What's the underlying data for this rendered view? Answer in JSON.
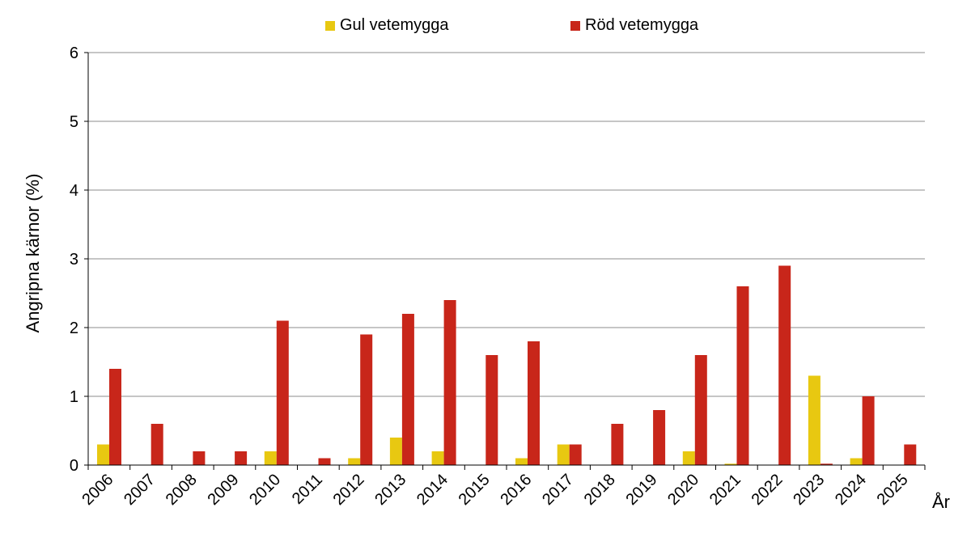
{
  "chart_data": {
    "type": "bar",
    "title": "",
    "xlabel": "År",
    "ylabel": "Angripna kärnor (%)",
    "ylim": [
      0,
      6
    ],
    "yticks": [
      "0",
      "1",
      "2",
      "3",
      "4",
      "5",
      "6"
    ],
    "grid": true,
    "legend_position": "top",
    "categories": [
      "2006",
      "2007",
      "2008",
      "2009",
      "2010",
      "2011",
      "2012",
      "2013",
      "2014",
      "2015",
      "2016",
      "2017",
      "2018",
      "2019",
      "2020",
      "2021",
      "2022",
      "2023",
      "2024",
      "2025"
    ],
    "series": [
      {
        "name": "Gul vetemygga",
        "color": "#e8c811",
        "values": [
          0.3,
          0,
          0,
          0,
          0.2,
          0,
          0.1,
          0.4,
          0.2,
          0,
          0.1,
          0.3,
          0,
          0,
          0.2,
          0.02,
          0,
          1.3,
          0.1,
          0
        ]
      },
      {
        "name": "Röd vetemygga",
        "color": "#c8261a",
        "values": [
          1.4,
          0.6,
          0.2,
          0.2,
          2.1,
          0.1,
          1.9,
          2.2,
          2.4,
          1.6,
          1.8,
          0.3,
          0.6,
          0.8,
          1.6,
          2.6,
          2.9,
          0.02,
          1.0,
          0.3
        ]
      }
    ]
  }
}
